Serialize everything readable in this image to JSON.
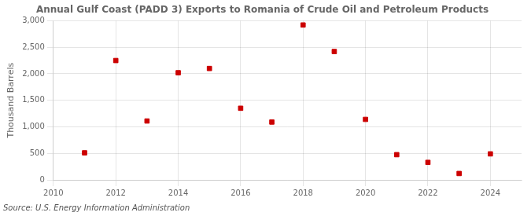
{
  "chart_data": {
    "type": "scatter",
    "title": "Annual Gulf Coast (PADD 3) Exports to Romania of Crude Oil and Petroleum Products",
    "y_label": "Thousand Barrels",
    "annotations": [
      "Source: U.S. Energy Information Administration"
    ],
    "x": [
      2011,
      2012,
      2013,
      2014,
      2015,
      2016,
      2017,
      2018,
      2019,
      2020,
      2021,
      2022,
      2023,
      2024
    ],
    "values": [
      510,
      2250,
      1110,
      2020,
      2100,
      1350,
      1090,
      2920,
      2420,
      1140,
      475,
      330,
      120,
      490
    ],
    "color": "#cc0000",
    "marker": "square",
    "xlim": [
      2010,
      2025
    ],
    "xticks": [
      2010,
      2012,
      2014,
      2016,
      2018,
      2020,
      2022,
      2024
    ],
    "ylim": [
      0,
      3000
    ],
    "yticks": [
      0,
      500,
      {
        "value": 1000,
        "label": "1,000"
      },
      {
        "value": 1500,
        "label": "1,500"
      },
      {
        "value": 2000,
        "label": "2,000"
      },
      {
        "value": 2500,
        "label": "2,500"
      },
      {
        "value": 3000,
        "label": "3,000"
      }
    ],
    "grid": true
  }
}
